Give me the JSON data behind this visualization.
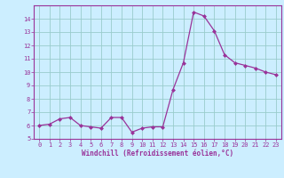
{
  "x": [
    0,
    1,
    2,
    3,
    4,
    5,
    6,
    7,
    8,
    9,
    10,
    11,
    12,
    13,
    14,
    15,
    16,
    17,
    18,
    19,
    20,
    21,
    22,
    23
  ],
  "y": [
    6.0,
    6.1,
    6.5,
    6.6,
    6.0,
    5.9,
    5.8,
    6.6,
    6.6,
    5.5,
    5.8,
    5.9,
    5.9,
    8.7,
    10.7,
    14.5,
    14.2,
    13.1,
    11.3,
    10.7,
    10.5,
    10.3,
    10.0,
    9.8
  ],
  "line_color": "#993399",
  "marker_color": "#993399",
  "bg_color": "#cceeff",
  "grid_color": "#99cccc",
  "xlabel": "Windchill (Refroidissement éolien,°C)",
  "xlabel_color": "#993399",
  "tick_color": "#993399",
  "spine_color": "#993399",
  "ylim": [
    5,
    15
  ],
  "xlim": [
    -0.5,
    23.5
  ],
  "yticks": [
    5,
    6,
    7,
    8,
    9,
    10,
    11,
    12,
    13,
    14
  ],
  "xticks": [
    0,
    1,
    2,
    3,
    4,
    5,
    6,
    7,
    8,
    9,
    10,
    11,
    12,
    13,
    14,
    15,
    16,
    17,
    18,
    19,
    20,
    21,
    22,
    23
  ]
}
